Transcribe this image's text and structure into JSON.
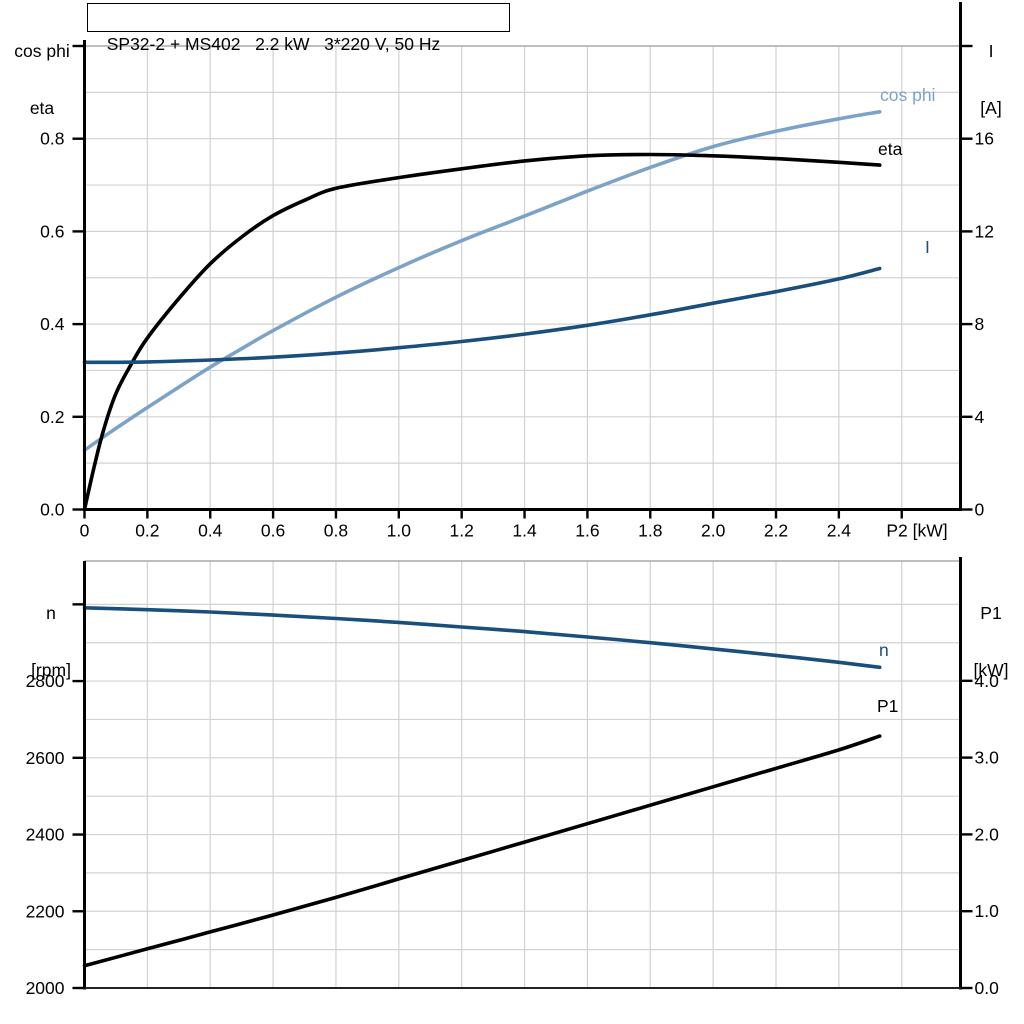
{
  "title": "SP32-2 + MS402   2.2 kW   3*220 V, 50 Hz",
  "colors": {
    "cos_phi": "#7ca3c7",
    "eta": "#000000",
    "current": "#1a4e7d",
    "speed": "#1a4e7d",
    "p1": "#000000",
    "grid": "#d2d2d2",
    "frame": "#a8a8a8",
    "axis": "#000000"
  },
  "top_chart": {
    "left_axis_title": [
      "cos phi",
      "eta"
    ],
    "right_axis_title": [
      "I",
      "[A]"
    ],
    "x_axis_title": "P2 [kW]",
    "curve_labels": {
      "cos_phi": "cos phi",
      "eta": "eta",
      "current": "I"
    }
  },
  "bottom_chart": {
    "left_axis_title": [
      "n",
      "[rpm]"
    ],
    "right_axis_title": [
      "P1",
      "[kW]"
    ],
    "curve_labels": {
      "speed": "n",
      "p1": "P1"
    }
  },
  "chart_data": [
    {
      "type": "line",
      "title": "SP32-2 + MS402   2.2 kW   3*220 V, 50 Hz",
      "xlabel": "P2 [kW]",
      "xlim": [
        0,
        2.787
      ],
      "x_gridlines": [
        0.2,
        0.4,
        0.6,
        0.8,
        1.0,
        1.2,
        1.4,
        1.6,
        1.8,
        2.0,
        2.2,
        2.4,
        2.6
      ],
      "x_ticks": [
        {
          "v": 0,
          "label": "0"
        },
        {
          "v": 0.2,
          "label": "0.2"
        },
        {
          "v": 0.4,
          "label": "0.4"
        },
        {
          "v": 0.6,
          "label": "0.6"
        },
        {
          "v": 0.8,
          "label": "0.8"
        },
        {
          "v": 1.0,
          "label": "1.0"
        },
        {
          "v": 1.2,
          "label": "1.2"
        },
        {
          "v": 1.4,
          "label": "1.4"
        },
        {
          "v": 1.6,
          "label": "1.6"
        },
        {
          "v": 1.8,
          "label": "1.8"
        },
        {
          "v": 2.0,
          "label": "2.0"
        },
        {
          "v": 2.2,
          "label": "2.2"
        },
        {
          "v": 2.4,
          "label": "2.4"
        },
        {
          "v": 2.6,
          "label": ""
        }
      ],
      "left_axis": {
        "label": "cos phi / eta",
        "ylim": [
          0,
          1.0
        ],
        "ticks": [
          {
            "v": 0,
            "label": "0.0"
          },
          {
            "v": 0.2,
            "label": "0.2"
          },
          {
            "v": 0.4,
            "label": "0.4"
          },
          {
            "v": 0.6,
            "label": "0.6"
          },
          {
            "v": 0.8,
            "label": "0.8"
          },
          {
            "v": 1.0,
            "label": ""
          }
        ]
      },
      "right_axis": {
        "label": "I [A]",
        "ylim": [
          0,
          20
        ],
        "ticks": [
          {
            "v": 0,
            "label": "0"
          },
          {
            "v": 4,
            "label": "4"
          },
          {
            "v": 8,
            "label": "8"
          },
          {
            "v": 12,
            "label": "12"
          },
          {
            "v": 16,
            "label": "16"
          },
          {
            "v": 20,
            "label": ""
          }
        ]
      },
      "h_gridlines": [
        0.1,
        0.2,
        0.3,
        0.4,
        0.5,
        0.6,
        0.7,
        0.8,
        0.9
      ],
      "series": [
        {
          "name": "cos phi",
          "axis": "left",
          "color_key": "cos_phi",
          "x": [
            0,
            0.1,
            0.2,
            0.3,
            0.4,
            0.5,
            0.6,
            0.8,
            1.0,
            1.2,
            1.4,
            1.6,
            1.8,
            2.0,
            2.2,
            2.4,
            2.53
          ],
          "y": [
            0.128,
            0.175,
            0.22,
            0.264,
            0.307,
            0.347,
            0.386,
            0.458,
            0.522,
            0.58,
            0.633,
            0.687,
            0.738,
            0.783,
            0.816,
            0.843,
            0.858
          ]
        },
        {
          "name": "eta",
          "axis": "left",
          "color_key": "eta",
          "x": [
            0,
            0.03,
            0.06,
            0.1,
            0.15,
            0.2,
            0.3,
            0.4,
            0.5,
            0.6,
            0.7,
            0.8,
            1.0,
            1.2,
            1.4,
            1.6,
            1.8,
            2.0,
            2.2,
            2.4,
            2.53
          ],
          "y": [
            0,
            0.09,
            0.17,
            0.25,
            0.315,
            0.37,
            0.455,
            0.53,
            0.588,
            0.634,
            0.667,
            0.693,
            0.716,
            0.735,
            0.752,
            0.763,
            0.766,
            0.763,
            0.757,
            0.749,
            0.743
          ]
        },
        {
          "name": "I",
          "axis": "right",
          "color_key": "current",
          "x": [
            0,
            0.2,
            0.4,
            0.6,
            0.8,
            1.0,
            1.2,
            1.4,
            1.6,
            1.8,
            2.0,
            2.2,
            2.4,
            2.53
          ],
          "y": [
            6.35,
            6.37,
            6.45,
            6.57,
            6.75,
            6.98,
            7.25,
            7.57,
            7.95,
            8.4,
            8.9,
            9.4,
            9.95,
            10.4
          ]
        }
      ]
    },
    {
      "type": "line",
      "title": "",
      "xlabel": "",
      "xlim": [
        0,
        2.787
      ],
      "x_gridlines": [
        0.2,
        0.4,
        0.6,
        0.8,
        1.0,
        1.2,
        1.4,
        1.6,
        1.8,
        2.0,
        2.2,
        2.4,
        2.6
      ],
      "x_ticks": [],
      "left_axis": {
        "label": "n [rpm]",
        "ylim": [
          2000,
          3113
        ],
        "ticks": [
          {
            "v": 2000,
            "label": "2000"
          },
          {
            "v": 2200,
            "label": "2200"
          },
          {
            "v": 2400,
            "label": "2400"
          },
          {
            "v": 2600,
            "label": "2600"
          },
          {
            "v": 2800,
            "label": "2800"
          },
          {
            "v": 3000,
            "label": ""
          }
        ]
      },
      "right_axis": {
        "label": "P1 [kW]",
        "ylim": [
          0,
          5.56
        ],
        "ticks": [
          {
            "v": 0,
            "label": "0.0"
          },
          {
            "v": 1,
            "label": "1.0"
          },
          {
            "v": 2,
            "label": "2.0"
          },
          {
            "v": 3,
            "label": "3.0"
          },
          {
            "v": 4,
            "label": "4.0"
          }
        ]
      },
      "h_gridlines": [
        2100,
        2200,
        2300,
        2400,
        2500,
        2600,
        2700,
        2800,
        2900,
        3000
      ],
      "series": [
        {
          "name": "n",
          "axis": "left",
          "color_key": "speed",
          "x": [
            0,
            0.2,
            0.4,
            0.6,
            0.8,
            1.0,
            1.2,
            1.4,
            1.6,
            1.8,
            2.0,
            2.2,
            2.4,
            2.53
          ],
          "y": [
            2991,
            2986,
            2980,
            2972,
            2963,
            2953,
            2941,
            2929,
            2915,
            2900,
            2884,
            2867,
            2849,
            2836
          ]
        },
        {
          "name": "P1",
          "axis": "right",
          "color_key": "p1",
          "x": [
            0,
            0.2,
            0.4,
            0.6,
            0.8,
            1.0,
            1.2,
            1.4,
            1.6,
            1.8,
            2.0,
            2.2,
            2.4,
            2.53
          ],
          "y": [
            0.29,
            0.51,
            0.73,
            0.95,
            1.18,
            1.42,
            1.66,
            1.9,
            2.14,
            2.38,
            2.62,
            2.86,
            3.1,
            3.28
          ]
        }
      ]
    }
  ]
}
